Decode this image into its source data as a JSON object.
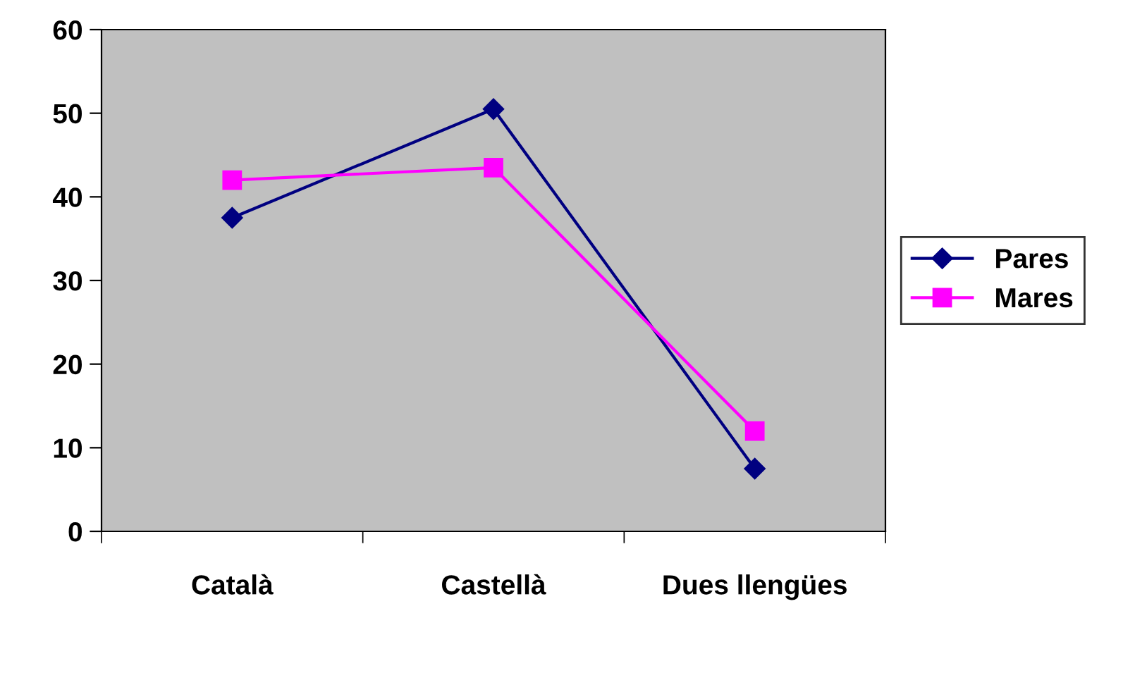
{
  "chart_data": {
    "type": "line",
    "categories": [
      "Català",
      "Castellà",
      "Dues llengües"
    ],
    "series": [
      {
        "name": "Pares",
        "color": "#000080",
        "marker": "diamond",
        "values": [
          37.5,
          50.5,
          7.5
        ]
      },
      {
        "name": "Mares",
        "color": "#ff00ff",
        "marker": "square",
        "values": [
          42,
          43.5,
          12
        ]
      }
    ],
    "ylim": [
      0,
      60
    ],
    "yticks": [
      0,
      10,
      20,
      30,
      40,
      50,
      60
    ],
    "grid": false,
    "legend": "right",
    "line_style": "solid"
  }
}
